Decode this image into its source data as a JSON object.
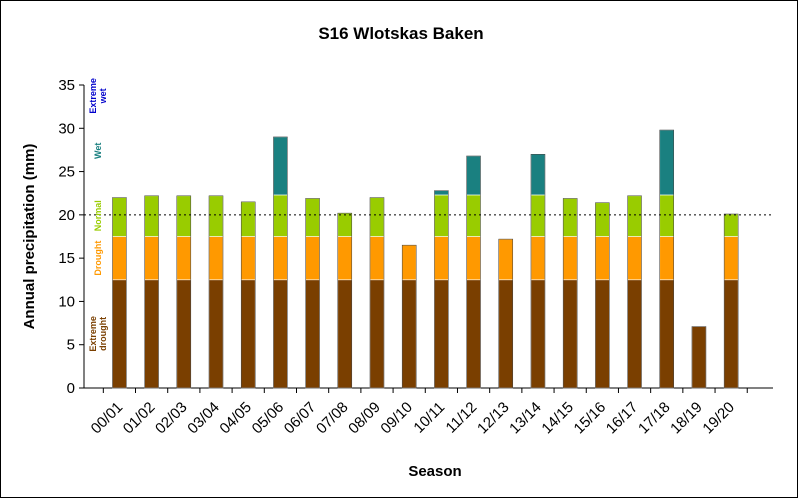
{
  "chart_data": {
    "type": "bar",
    "stacked": true,
    "title": "S16 Wlotskas Baken",
    "xlabel": "Season",
    "ylabel": "Annual precipitation (mm)",
    "ylim": [
      0,
      35
    ],
    "yticks": [
      0,
      5,
      10,
      15,
      20,
      25,
      30,
      35
    ],
    "grid": false,
    "categories": [
      "00/01",
      "01/02",
      "02/03",
      "03/04",
      "04/05",
      "05/06",
      "06/07",
      "07/08",
      "08/09",
      "09/10",
      "10/11",
      "11/12",
      "12/13",
      "13/14",
      "14/15",
      "15/16",
      "16/17",
      "17/18",
      "18/19",
      "19/20"
    ],
    "totals": [
      22.0,
      22.2,
      22.2,
      22.2,
      21.5,
      29.0,
      21.9,
      20.2,
      22.0,
      16.5,
      22.8,
      26.8,
      17.2,
      27.0,
      21.9,
      21.4,
      22.2,
      29.8,
      7.1,
      20.1
    ],
    "band_thresholds": [
      12.5,
      17.5,
      22.3,
      32.5
    ],
    "reference_line": 20,
    "bands": [
      {
        "label": "Extreme drought",
        "color": "#7a3f00",
        "text_color": "#7a3f00",
        "from": 0,
        "to": 12.5
      },
      {
        "label": "Drought",
        "color": "#ff9900",
        "text_color": "#ff9900",
        "from": 12.5,
        "to": 17.5
      },
      {
        "label": "Normal",
        "color": "#99cc00",
        "text_color": "#99cc00",
        "from": 17.5,
        "to": 22.3
      },
      {
        "label": "Wet",
        "color": "#1a8080",
        "text_color": "#1a8080",
        "from": 22.3,
        "to": 32.5
      },
      {
        "label": "Extreme wet",
        "color": "#0000cc",
        "text_color": "#0000cc",
        "from": 32.5,
        "to": 35
      }
    ]
  }
}
